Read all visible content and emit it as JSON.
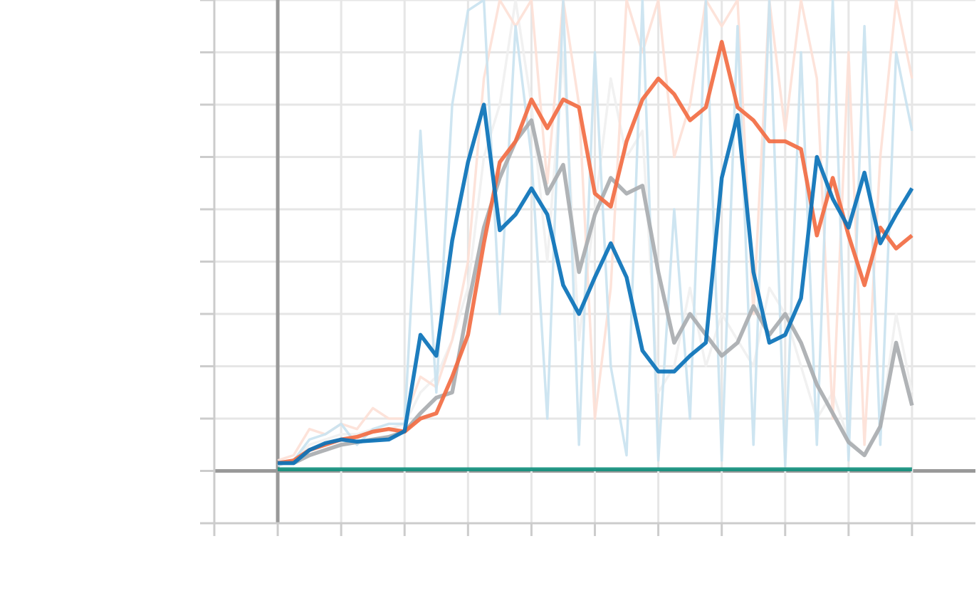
{
  "chart_data": {
    "type": "line",
    "x": [
      0,
      0.25,
      0.5,
      0.75,
      1,
      1.25,
      1.5,
      1.75,
      2,
      2.25,
      2.5,
      2.75,
      3,
      3.25,
      3.5,
      3.75,
      4,
      4.25,
      4.5,
      4.75,
      5,
      5.25,
      5.5,
      5.75,
      6,
      6.25,
      6.5,
      6.75,
      7,
      7.25,
      7.5,
      7.75,
      8,
      8.25,
      8.5,
      8.75,
      9,
      9.25,
      9.5,
      9.75,
      10
    ],
    "series": [
      {
        "color": "#f0f0f0",
        "values": [
          0.1,
          0.2,
          0.5,
          0.6,
          0.7,
          0.7,
          0.8,
          0.8,
          0.9,
          1.5,
          1.8,
          2.5,
          3.5,
          6.0,
          7.0,
          9.0,
          7.0,
          4.0,
          8.0,
          2.5,
          5.0,
          7.5,
          6.0,
          6.5,
          1.5,
          2.0,
          3.5,
          2.0,
          3.0,
          2.5,
          2.0,
          3.5,
          3.0,
          2.0,
          1.0,
          1.5,
          0.6,
          0.3,
          0.8,
          3.0,
          1.5
        ]
      },
      {
        "color": "#fde0d6",
        "values": [
          0.2,
          0.3,
          0.8,
          0.7,
          0.9,
          0.8,
          1.2,
          1.0,
          1.0,
          1.8,
          1.6,
          2.5,
          4.0,
          7.5,
          9.0,
          8.5,
          9.0,
          5.5,
          9.0,
          7.0,
          1.0,
          3.5,
          9.0,
          8.0,
          9.0,
          6.0,
          7.0,
          9.0,
          8.5,
          9.0,
          3.0,
          9.0,
          6.5,
          9.0,
          7.5,
          1.0,
          8.0,
          0.5,
          6.0,
          9.0,
          7.5
        ]
      },
      {
        "color": "#c9e2f0",
        "values": [
          0.1,
          0.2,
          0.6,
          0.7,
          0.9,
          0.5,
          0.8,
          0.9,
          0.9,
          6.5,
          1.5,
          7.0,
          8.8,
          9.0,
          3.0,
          8.5,
          6.0,
          1.0,
          9.0,
          0.5,
          8.0,
          2.0,
          0.3,
          9.0,
          0.2,
          5.0,
          1.0,
          9.0,
          0.2,
          8.5,
          0.5,
          9.0,
          0.1,
          8.0,
          0.5,
          9.0,
          0.2,
          8.5,
          0.5,
          8.0,
          6.5
        ]
      },
      {
        "color": "#a9adb0",
        "values": [
          0.15,
          0.15,
          0.3,
          0.4,
          0.5,
          0.55,
          0.6,
          0.65,
          0.75,
          1.1,
          1.4,
          1.5,
          3.15,
          4.65,
          5.6,
          6.3,
          6.7,
          5.3,
          5.85,
          3.8,
          4.9,
          5.6,
          5.3,
          5.45,
          3.8,
          2.45,
          3.0,
          2.6,
          2.2,
          2.45,
          3.15,
          2.6,
          3.0,
          2.45,
          1.65,
          1.1,
          0.55,
          0.3,
          0.85,
          2.45,
          1.25
        ]
      },
      {
        "color": "#f26d43",
        "values": [
          0.15,
          0.2,
          0.4,
          0.5,
          0.6,
          0.65,
          0.75,
          0.8,
          0.75,
          1.0,
          1.1,
          1.8,
          2.6,
          4.35,
          5.9,
          6.3,
          7.1,
          6.55,
          7.1,
          6.95,
          5.3,
          5.05,
          6.3,
          7.1,
          7.5,
          7.2,
          6.7,
          6.95,
          8.2,
          6.95,
          6.7,
          6.3,
          6.3,
          6.15,
          4.5,
          5.6,
          4.5,
          3.55,
          4.65,
          4.25,
          4.5
        ]
      },
      {
        "color": "#0a72b8",
        "values": [
          0.15,
          0.15,
          0.4,
          0.53,
          0.6,
          0.56,
          0.58,
          0.6,
          0.76,
          2.6,
          2.2,
          4.4,
          5.9,
          7.0,
          4.6,
          4.9,
          5.4,
          4.9,
          3.55,
          3.0,
          3.7,
          4.35,
          3.7,
          2.3,
          1.9,
          1.9,
          2.2,
          2.45,
          5.6,
          6.8,
          3.8,
          2.45,
          2.6,
          3.3,
          6.0,
          5.2,
          4.65,
          5.7,
          4.35,
          4.9,
          5.4
        ]
      },
      {
        "color": "#13907e",
        "values": [
          0.03,
          0.03,
          0.03,
          0.03,
          0.03,
          0.03,
          0.03,
          0.03,
          0.03,
          0.03,
          0.03,
          0.03,
          0.03,
          0.03,
          0.03,
          0.03,
          0.03,
          0.03,
          0.03,
          0.03,
          0.03,
          0.03,
          0.03,
          0.03,
          0.03,
          0.03,
          0.03,
          0.03,
          0.03,
          0.03,
          0.03,
          0.03,
          0.03,
          0.03,
          0.03,
          0.03,
          0.03,
          0.03,
          0.03,
          0.03,
          0.03
        ]
      }
    ],
    "xlim": [
      -1,
      11
    ],
    "ylim": [
      -1,
      9
    ],
    "xticks": [
      -1,
      0,
      1,
      2,
      3,
      4,
      5,
      6,
      7,
      8,
      9,
      10
    ],
    "yticks": [
      -1,
      0,
      1,
      2,
      3,
      4,
      5,
      6,
      7,
      8,
      9
    ],
    "grid": true
  }
}
